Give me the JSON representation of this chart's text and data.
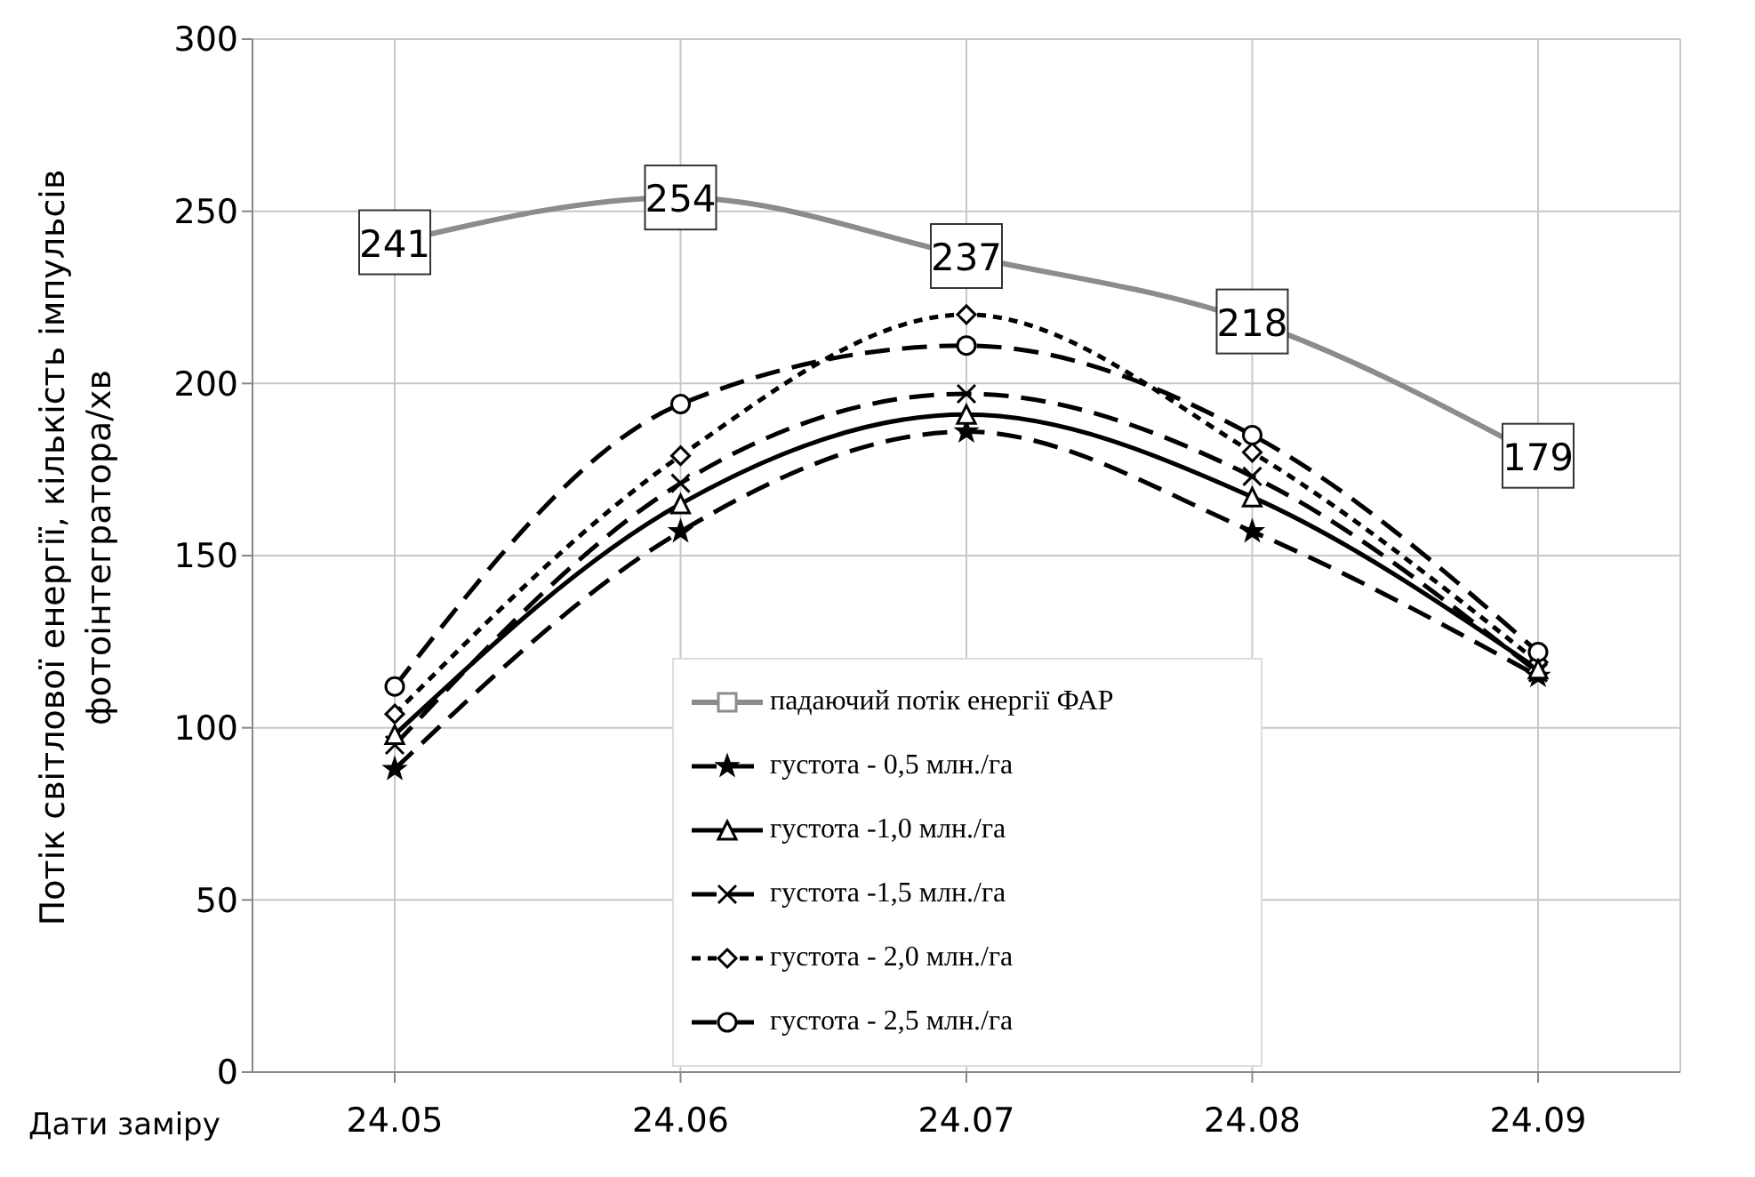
{
  "chart_data": {
    "type": "line",
    "xlabel": "Дати заміру",
    "ylabel": "Потік світлової енергії,  кількість імпульсів\nфотоінтегратора/хв",
    "categories": [
      "24.05",
      "24.06",
      "24.07",
      "24.08",
      "24.09"
    ],
    "ylim": [
      0,
      300
    ],
    "yticks": [
      0,
      50,
      100,
      150,
      200,
      250,
      300
    ],
    "grid": true,
    "legend": "bottom",
    "series": [
      {
        "name": "падаючий потік енергії ФАР",
        "color": "#8c8c8c",
        "marker": "square",
        "line_style": "solid",
        "values": [
          241,
          254,
          237,
          218,
          179
        ],
        "value_labels": [
          "241",
          "254",
          "237",
          "218",
          "179"
        ]
      },
      {
        "name": "густота  - 0,5 млн./га",
        "color": "#000000",
        "marker": "star",
        "line_style": "dashed",
        "values": [
          88,
          157,
          186,
          157,
          115
        ]
      },
      {
        "name": "густота  -1,0 млн./га",
        "color": "#000000",
        "marker": "triangle",
        "line_style": "solid",
        "values": [
          98,
          165,
          191,
          167,
          117
        ]
      },
      {
        "name": "густота  -1,5 млн./га",
        "color": "#000000",
        "marker": "cross",
        "line_style": "dashed",
        "values": [
          95,
          171,
          197,
          173,
          116
        ]
      },
      {
        "name": "густота  - 2,0 млн./га",
        "color": "#000000",
        "marker": "diamond",
        "line_style": "dotted",
        "values": [
          104,
          179,
          220,
          180,
          119
        ]
      },
      {
        "name": "густота  - 2,5 млн./га",
        "color": "#000000",
        "marker": "circle",
        "line_style": "dashed",
        "values": [
          112,
          194,
          211,
          185,
          122
        ]
      }
    ]
  }
}
